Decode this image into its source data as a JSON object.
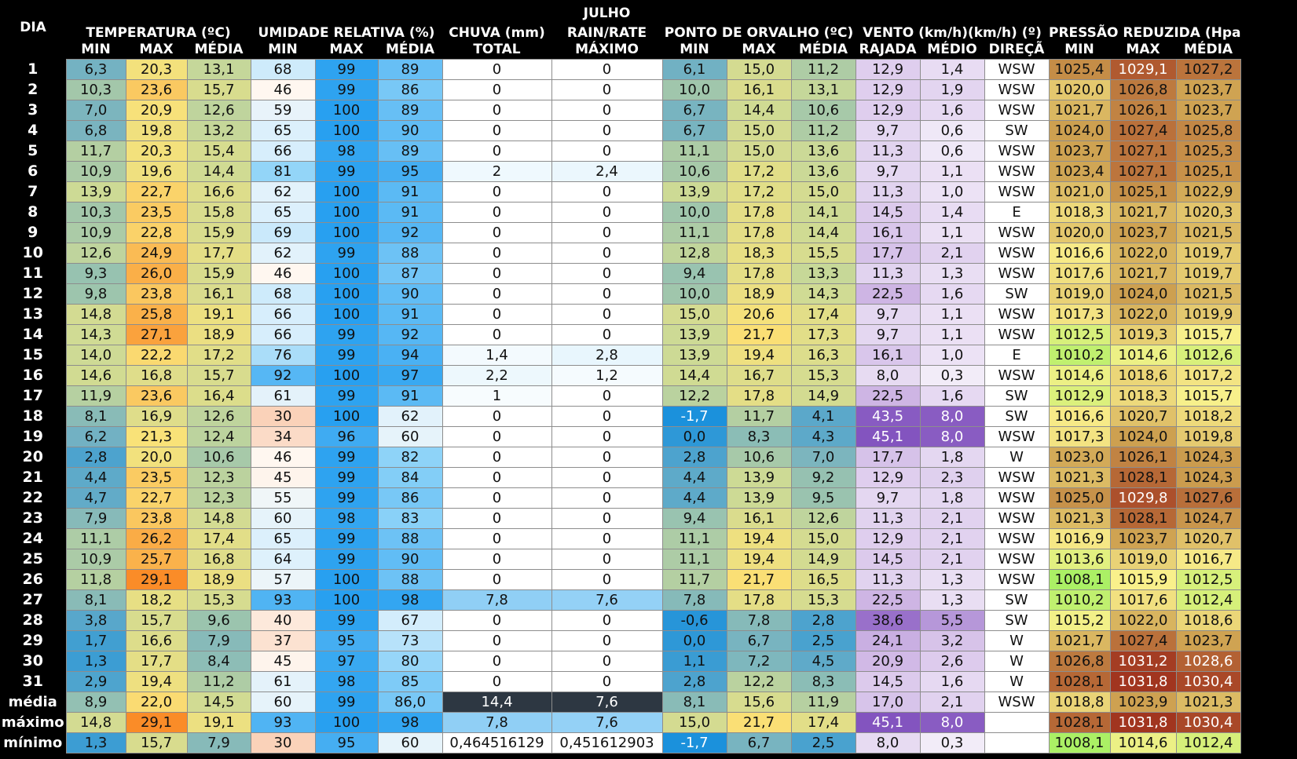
{
  "title": "JULHO",
  "headers": {
    "day": "DIA",
    "groups": [
      {
        "label": "TEMPERATURA (ºC)",
        "span": 3
      },
      {
        "label": "UMIDADE RELATIVA (%)",
        "span": 3
      },
      {
        "label": "CHUVA (mm)",
        "span": 1
      },
      {
        "label": "RAIN/RATE",
        "span": 1
      },
      {
        "label": "PONTO DE ORVALHO (ºC)",
        "span": 3
      },
      {
        "label": "VENTO (km/h)(km/h) (º)",
        "span": 3
      },
      {
        "label": "PRESSÃO REDUZIDA (Hpa)",
        "span": 3
      }
    ],
    "subheaders": [
      "MIN",
      "MAX",
      "MÉDIA",
      "MIN",
      "MAX",
      "MÉDIA",
      "TOTAL",
      "MÁXIMO",
      "MIN",
      "MAX",
      "MÉDIA",
      "RAJADA",
      "MÉDIO",
      "DIREÇÃ",
      "MIN",
      "MAX",
      "MÉDIA"
    ]
  },
  "rows": [
    {
      "day": "1",
      "cells": [
        "6,3",
        "20,3",
        "13,1",
        "68",
        "99",
        "89",
        "0",
        "0",
        "6,1",
        "15,0",
        "11,2",
        "12,9",
        "1,4",
        "WSW",
        "1025,4",
        "1029,1",
        "1027,2"
      ]
    },
    {
      "day": "2",
      "cells": [
        "10,3",
        "23,6",
        "15,7",
        "46",
        "99",
        "86",
        "0",
        "0",
        "10,0",
        "16,1",
        "13,1",
        "12,9",
        "1,9",
        "WSW",
        "1020,0",
        "1026,8",
        "1023,7"
      ]
    },
    {
      "day": "3",
      "cells": [
        "7,0",
        "20,9",
        "12,6",
        "59",
        "100",
        "89",
        "0",
        "0",
        "6,7",
        "14,4",
        "10,6",
        "12,9",
        "1,6",
        "WSW",
        "1021,7",
        "1026,1",
        "1023,7"
      ]
    },
    {
      "day": "4",
      "cells": [
        "6,8",
        "19,8",
        "13,2",
        "65",
        "100",
        "90",
        "0",
        "0",
        "6,7",
        "15,0",
        "11,2",
        "9,7",
        "0,6",
        "SW",
        "1024,0",
        "1027,4",
        "1025,8"
      ]
    },
    {
      "day": "5",
      "cells": [
        "11,7",
        "20,3",
        "15,4",
        "66",
        "98",
        "89",
        "0",
        "0",
        "11,1",
        "15,0",
        "13,6",
        "11,3",
        "0,6",
        "WSW",
        "1023,7",
        "1027,1",
        "1025,3"
      ]
    },
    {
      "day": "6",
      "cells": [
        "10,9",
        "19,6",
        "14,4",
        "81",
        "99",
        "95",
        "2",
        "2,4",
        "10,6",
        "17,2",
        "13,6",
        "9,7",
        "1,1",
        "WSW",
        "1023,4",
        "1027,1",
        "1025,1"
      ]
    },
    {
      "day": "7",
      "cells": [
        "13,9",
        "22,7",
        "16,6",
        "62",
        "100",
        "91",
        "0",
        "0",
        "13,9",
        "17,2",
        "15,0",
        "11,3",
        "1,0",
        "WSW",
        "1021,0",
        "1025,1",
        "1022,9"
      ]
    },
    {
      "day": "8",
      "cells": [
        "10,3",
        "23,5",
        "15,8",
        "65",
        "100",
        "91",
        "0",
        "0",
        "10,0",
        "17,8",
        "14,1",
        "14,5",
        "1,4",
        "E",
        "1018,3",
        "1021,7",
        "1020,3"
      ]
    },
    {
      "day": "9",
      "cells": [
        "10,9",
        "22,8",
        "15,9",
        "69",
        "100",
        "92",
        "0",
        "0",
        "11,1",
        "17,8",
        "14,4",
        "16,1",
        "1,1",
        "WSW",
        "1020,0",
        "1023,7",
        "1021,5"
      ]
    },
    {
      "day": "10",
      "cells": [
        "12,6",
        "24,9",
        "17,7",
        "62",
        "99",
        "88",
        "0",
        "0",
        "12,8",
        "18,3",
        "15,5",
        "17,7",
        "2,1",
        "WSW",
        "1016,6",
        "1022,0",
        "1019,7"
      ]
    },
    {
      "day": "11",
      "cells": [
        "9,3",
        "26,0",
        "15,9",
        "46",
        "100",
        "87",
        "0",
        "0",
        "9,4",
        "17,8",
        "13,3",
        "11,3",
        "1,3",
        "WSW",
        "1017,6",
        "1021,7",
        "1019,7"
      ]
    },
    {
      "day": "12",
      "cells": [
        "9,8",
        "23,8",
        "16,1",
        "68",
        "100",
        "90",
        "0",
        "0",
        "10,0",
        "18,9",
        "14,3",
        "22,5",
        "1,6",
        "SW",
        "1019,0",
        "1024,0",
        "1021,5"
      ]
    },
    {
      "day": "13",
      "cells": [
        "14,8",
        "25,8",
        "19,1",
        "66",
        "100",
        "91",
        "0",
        "0",
        "15,0",
        "20,6",
        "17,4",
        "9,7",
        "1,1",
        "WSW",
        "1017,3",
        "1022,0",
        "1019,9"
      ]
    },
    {
      "day": "14",
      "cells": [
        "14,3",
        "27,1",
        "18,9",
        "66",
        "99",
        "92",
        "0",
        "0",
        "13,9",
        "21,7",
        "17,3",
        "9,7",
        "1,1",
        "WSW",
        "1012,5",
        "1019,3",
        "1015,7"
      ]
    },
    {
      "day": "15",
      "cells": [
        "14,0",
        "22,2",
        "17,2",
        "76",
        "99",
        "94",
        "1,4",
        "2,8",
        "13,9",
        "19,4",
        "16,3",
        "16,1",
        "1,0",
        "E",
        "1010,2",
        "1014,6",
        "1012,6"
      ]
    },
    {
      "day": "16",
      "cells": [
        "14,6",
        "16,8",
        "15,7",
        "92",
        "100",
        "97",
        "2,2",
        "1,2",
        "14,4",
        "16,7",
        "15,3",
        "8,0",
        "0,3",
        "WSW",
        "1014,6",
        "1018,6",
        "1017,2"
      ]
    },
    {
      "day": "17",
      "cells": [
        "11,9",
        "23,6",
        "16,4",
        "61",
        "99",
        "91",
        "1",
        "0",
        "12,2",
        "17,8",
        "14,9",
        "22,5",
        "1,6",
        "SW",
        "1012,9",
        "1018,3",
        "1015,7"
      ]
    },
    {
      "day": "18",
      "cells": [
        "8,1",
        "16,9",
        "12,6",
        "30",
        "100",
        "62",
        "0",
        "0",
        "-1,7",
        "11,7",
        "4,1",
        "43,5",
        "8,0",
        "SW",
        "1016,6",
        "1020,7",
        "1018,2"
      ]
    },
    {
      "day": "19",
      "cells": [
        "6,2",
        "21,3",
        "12,4",
        "34",
        "96",
        "60",
        "0",
        "0",
        "0,0",
        "8,3",
        "4,3",
        "45,1",
        "8,0",
        "WSW",
        "1017,3",
        "1024,0",
        "1019,8"
      ]
    },
    {
      "day": "20",
      "cells": [
        "2,8",
        "20,0",
        "10,6",
        "46",
        "99",
        "82",
        "0",
        "0",
        "2,8",
        "10,6",
        "7,0",
        "17,7",
        "1,8",
        "W",
        "1023,0",
        "1026,1",
        "1024,3"
      ]
    },
    {
      "day": "21",
      "cells": [
        "4,4",
        "23,5",
        "12,3",
        "45",
        "99",
        "84",
        "0",
        "0",
        "4,4",
        "13,9",
        "9,2",
        "12,9",
        "2,3",
        "WSW",
        "1021,3",
        "1028,1",
        "1024,3"
      ]
    },
    {
      "day": "22",
      "cells": [
        "4,7",
        "22,7",
        "12,3",
        "55",
        "99",
        "86",
        "0",
        "0",
        "4,4",
        "13,9",
        "9,5",
        "9,7",
        "1,8",
        "WSW",
        "1025,0",
        "1029,8",
        "1027,6"
      ]
    },
    {
      "day": "23",
      "cells": [
        "7,9",
        "23,8",
        "14,8",
        "60",
        "98",
        "83",
        "0",
        "0",
        "9,4",
        "16,1",
        "12,6",
        "11,3",
        "2,1",
        "WSW",
        "1021,3",
        "1028,1",
        "1024,7"
      ]
    },
    {
      "day": "24",
      "cells": [
        "11,1",
        "26,2",
        "17,4",
        "65",
        "99",
        "88",
        "0",
        "0",
        "11,1",
        "19,4",
        "15,0",
        "12,9",
        "2,1",
        "WSW",
        "1016,9",
        "1023,7",
        "1020,7"
      ]
    },
    {
      "day": "25",
      "cells": [
        "10,9",
        "25,7",
        "16,8",
        "64",
        "99",
        "90",
        "0",
        "0",
        "11,1",
        "19,4",
        "14,9",
        "14,5",
        "2,1",
        "WSW",
        "1013,6",
        "1019,0",
        "1016,7"
      ]
    },
    {
      "day": "26",
      "cells": [
        "11,8",
        "29,1",
        "18,9",
        "57",
        "100",
        "88",
        "0",
        "0",
        "11,7",
        "21,7",
        "16,5",
        "11,3",
        "1,3",
        "WSW",
        "1008,1",
        "1015,9",
        "1012,5"
      ]
    },
    {
      "day": "27",
      "cells": [
        "8,1",
        "18,2",
        "15,3",
        "93",
        "100",
        "98",
        "7,8",
        "7,6",
        "7,8",
        "17,8",
        "15,3",
        "22,5",
        "1,3",
        "SW",
        "1010,2",
        "1017,6",
        "1012,4"
      ]
    },
    {
      "day": "28",
      "cells": [
        "3,8",
        "15,7",
        "9,6",
        "40",
        "99",
        "67",
        "0",
        "0",
        "-0,6",
        "7,8",
        "2,8",
        "38,6",
        "5,5",
        "SW",
        "1015,2",
        "1022,0",
        "1018,6"
      ]
    },
    {
      "day": "29",
      "cells": [
        "1,7",
        "16,6",
        "7,9",
        "37",
        "95",
        "73",
        "0",
        "0",
        "0,0",
        "6,7",
        "2,5",
        "24,1",
        "3,2",
        "W",
        "1021,7",
        "1027,4",
        "1023,7"
      ]
    },
    {
      "day": "30",
      "cells": [
        "1,3",
        "17,7",
        "8,4",
        "45",
        "97",
        "80",
        "0",
        "0",
        "1,1",
        "7,2",
        "4,5",
        "20,9",
        "2,6",
        "W",
        "1026,8",
        "1031,2",
        "1028,6"
      ]
    },
    {
      "day": "31",
      "cells": [
        "2,9",
        "19,4",
        "11,2",
        "61",
        "98",
        "85",
        "0",
        "0",
        "2,8",
        "12,2",
        "8,3",
        "14,5",
        "1,6",
        "W",
        "1028,1",
        "1031,8",
        "1030,4"
      ]
    }
  ],
  "summary": [
    {
      "label": "média",
      "cells": [
        "8,9",
        "22,0",
        "14,5",
        "60",
        "99",
        "86,0",
        "14,4",
        "7,6",
        "8,1",
        "15,6",
        "11,9",
        "17,0",
        "2,1",
        "WSW",
        "1018,8",
        "1023,9",
        "1021,3"
      ]
    },
    {
      "label": "máximo",
      "cells": [
        "14,8",
        "29,1",
        "19,1",
        "93",
        "100",
        "98",
        "7,8",
        "7,6",
        "15,0",
        "21,7",
        "17,4",
        "45,1",
        "8,0",
        "",
        "1028,1",
        "1031,8",
        "1030,4"
      ]
    },
    {
      "label": "mínimo",
      "cells": [
        "1,3",
        "15,7",
        "7,9",
        "30",
        "95",
        "60",
        "0,464516129",
        "0,451612903",
        "-1,7",
        "6,7",
        "2,5",
        "8,0",
        "0,3",
        "",
        "1008,1",
        "1014,6",
        "1012,4"
      ]
    }
  ]
}
